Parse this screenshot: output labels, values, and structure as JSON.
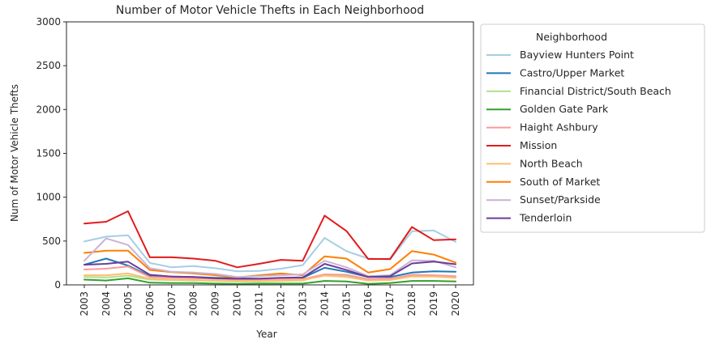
{
  "chart_data": {
    "type": "line",
    "title": "Number of Motor Vehicle Thefts in Each Neighborhood",
    "xlabel": "Year",
    "ylabel": "Num of Motor Vehicle Thefts",
    "ylim": [
      0,
      3000
    ],
    "yticks": [
      0,
      500,
      1000,
      1500,
      2000,
      2500,
      3000
    ],
    "grid": false,
    "legend_title": "Neighborhood",
    "legend_position": "right, outside plot",
    "x": [
      "2003",
      "2004",
      "2005",
      "2006",
      "2007",
      "2008",
      "2009",
      "2010",
      "2011",
      "2012",
      "2013",
      "2014",
      "2015",
      "2016",
      "2017",
      "2018",
      "2019",
      "2020"
    ],
    "series": [
      {
        "name": "Bayview Hunters Point",
        "color": "#a6cee3",
        "values": [
          495,
          550,
          565,
          250,
          200,
          215,
          190,
          155,
          160,
          185,
          225,
          535,
          385,
          300,
          290,
          610,
          620,
          490
        ]
      },
      {
        "name": "Castro/Upper Market",
        "color": "#1f78b4",
        "values": [
          230,
          300,
          220,
          100,
          95,
          90,
          80,
          75,
          70,
          75,
          80,
          195,
          150,
          90,
          90,
          140,
          155,
          150
        ]
      },
      {
        "name": "Financial District/South Beach",
        "color": "#b2df8a",
        "values": [
          90,
          85,
          105,
          60,
          55,
          50,
          45,
          40,
          40,
          45,
          50,
          115,
          100,
          55,
          60,
          110,
          110,
          95
        ]
      },
      {
        "name": "Golden Gate Park",
        "color": "#33a02c",
        "values": [
          60,
          50,
          75,
          25,
          20,
          20,
          15,
          12,
          15,
          15,
          15,
          45,
          40,
          12,
          20,
          45,
          45,
          40
        ]
      },
      {
        "name": "Haight Ashbury",
        "color": "#fb9a99",
        "values": [
          175,
          185,
          210,
          90,
          80,
          75,
          70,
          60,
          60,
          70,
          65,
          120,
          115,
          65,
          70,
          115,
          110,
          100
        ]
      },
      {
        "name": "Mission",
        "color": "#e31a1c",
        "values": [
          700,
          720,
          840,
          315,
          315,
          300,
          275,
          200,
          240,
          285,
          275,
          790,
          615,
          295,
          295,
          660,
          510,
          520
        ]
      },
      {
        "name": "North Beach",
        "color": "#fdbf6f",
        "values": [
          110,
          110,
          130,
          70,
          60,
          55,
          50,
          45,
          45,
          50,
          55,
          105,
          90,
          50,
          55,
          95,
          95,
          80
        ]
      },
      {
        "name": "South of Market",
        "color": "#ff7f00",
        "values": [
          365,
          390,
          390,
          170,
          145,
          130,
          110,
          85,
          110,
          130,
          110,
          325,
          300,
          140,
          180,
          385,
          345,
          255
        ]
      },
      {
        "name": "Sunset/Parkside",
        "color": "#cab2d6",
        "values": [
          275,
          530,
          455,
          190,
          150,
          140,
          125,
          90,
          100,
          110,
          120,
          275,
          200,
          100,
          110,
          280,
          275,
          200
        ]
      },
      {
        "name": "Tenderloin",
        "color": "#6a3d9a",
        "values": [
          230,
          240,
          265,
          115,
          95,
          90,
          75,
          70,
          70,
          80,
          85,
          240,
          170,
          90,
          100,
          245,
          265,
          235
        ]
      }
    ]
  }
}
